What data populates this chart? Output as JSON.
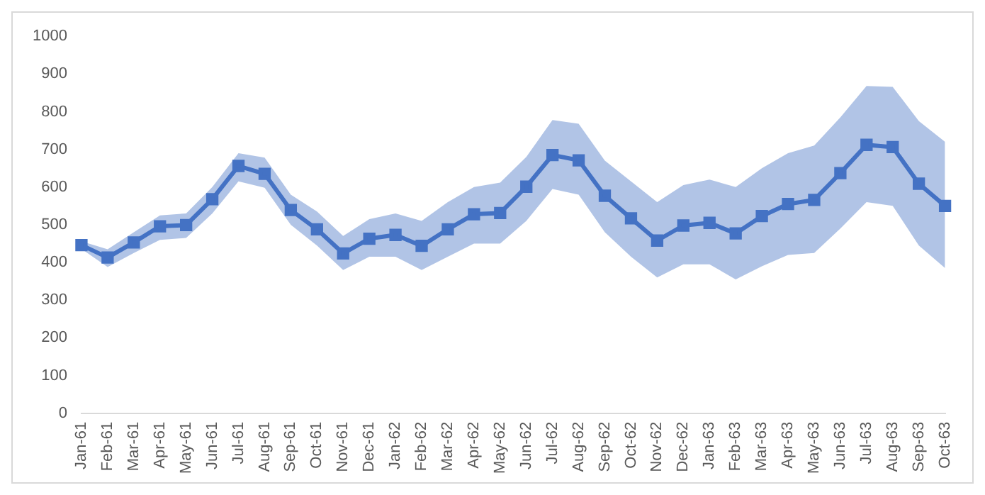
{
  "chart_data": {
    "type": "line",
    "categories": [
      "Jan-61",
      "Feb-61",
      "Mar-61",
      "Apr-61",
      "May-61",
      "Jun-61",
      "Jul-61",
      "Aug-61",
      "Sep-61",
      "Oct-61",
      "Nov-61",
      "Dec-61",
      "Jan-62",
      "Feb-62",
      "Mar-62",
      "Apr-62",
      "May-62",
      "Jun-62",
      "Jul-62",
      "Aug-62",
      "Sep-62",
      "Oct-62",
      "Nov-62",
      "Dec-62",
      "Jan-63",
      "Feb-63",
      "Mar-63",
      "Apr-63",
      "May-63",
      "Jun-63",
      "Jul-63",
      "Aug-63",
      "Sep-63",
      "Oct-63"
    ],
    "series": [
      {
        "color": "#4472c4",
        "values": [
          446,
          413,
          453,
          496,
          499,
          568,
          656,
          635,
          539,
          488,
          424,
          463,
          473,
          444,
          488,
          528,
          531,
          601,
          685,
          671,
          577,
          517,
          458,
          498,
          505,
          477,
          523,
          555,
          566,
          637,
          712,
          706,
          609,
          550
        ],
        "upper": [
          456,
          435,
          480,
          525,
          530,
          600,
          690,
          678,
          580,
          535,
          470,
          515,
          530,
          510,
          560,
          600,
          612,
          680,
          778,
          768,
          670,
          615,
          560,
          605,
          620,
          600,
          650,
          690,
          710,
          785,
          868,
          866,
          775,
          720
        ],
        "lower": [
          436,
          388,
          425,
          460,
          465,
          530,
          615,
          598,
          500,
          445,
          380,
          415,
          415,
          380,
          415,
          450,
          450,
          510,
          595,
          580,
          480,
          415,
          360,
          395,
          395,
          355,
          390,
          420,
          425,
          490,
          560,
          550,
          445,
          385
        ]
      }
    ],
    "ylim": [
      0,
      1000
    ],
    "yticks": [
      0,
      100,
      200,
      300,
      400,
      500,
      600,
      700,
      800,
      900,
      1000
    ],
    "grid": false,
    "legend": false,
    "marker": "square",
    "line_style": "solid"
  }
}
